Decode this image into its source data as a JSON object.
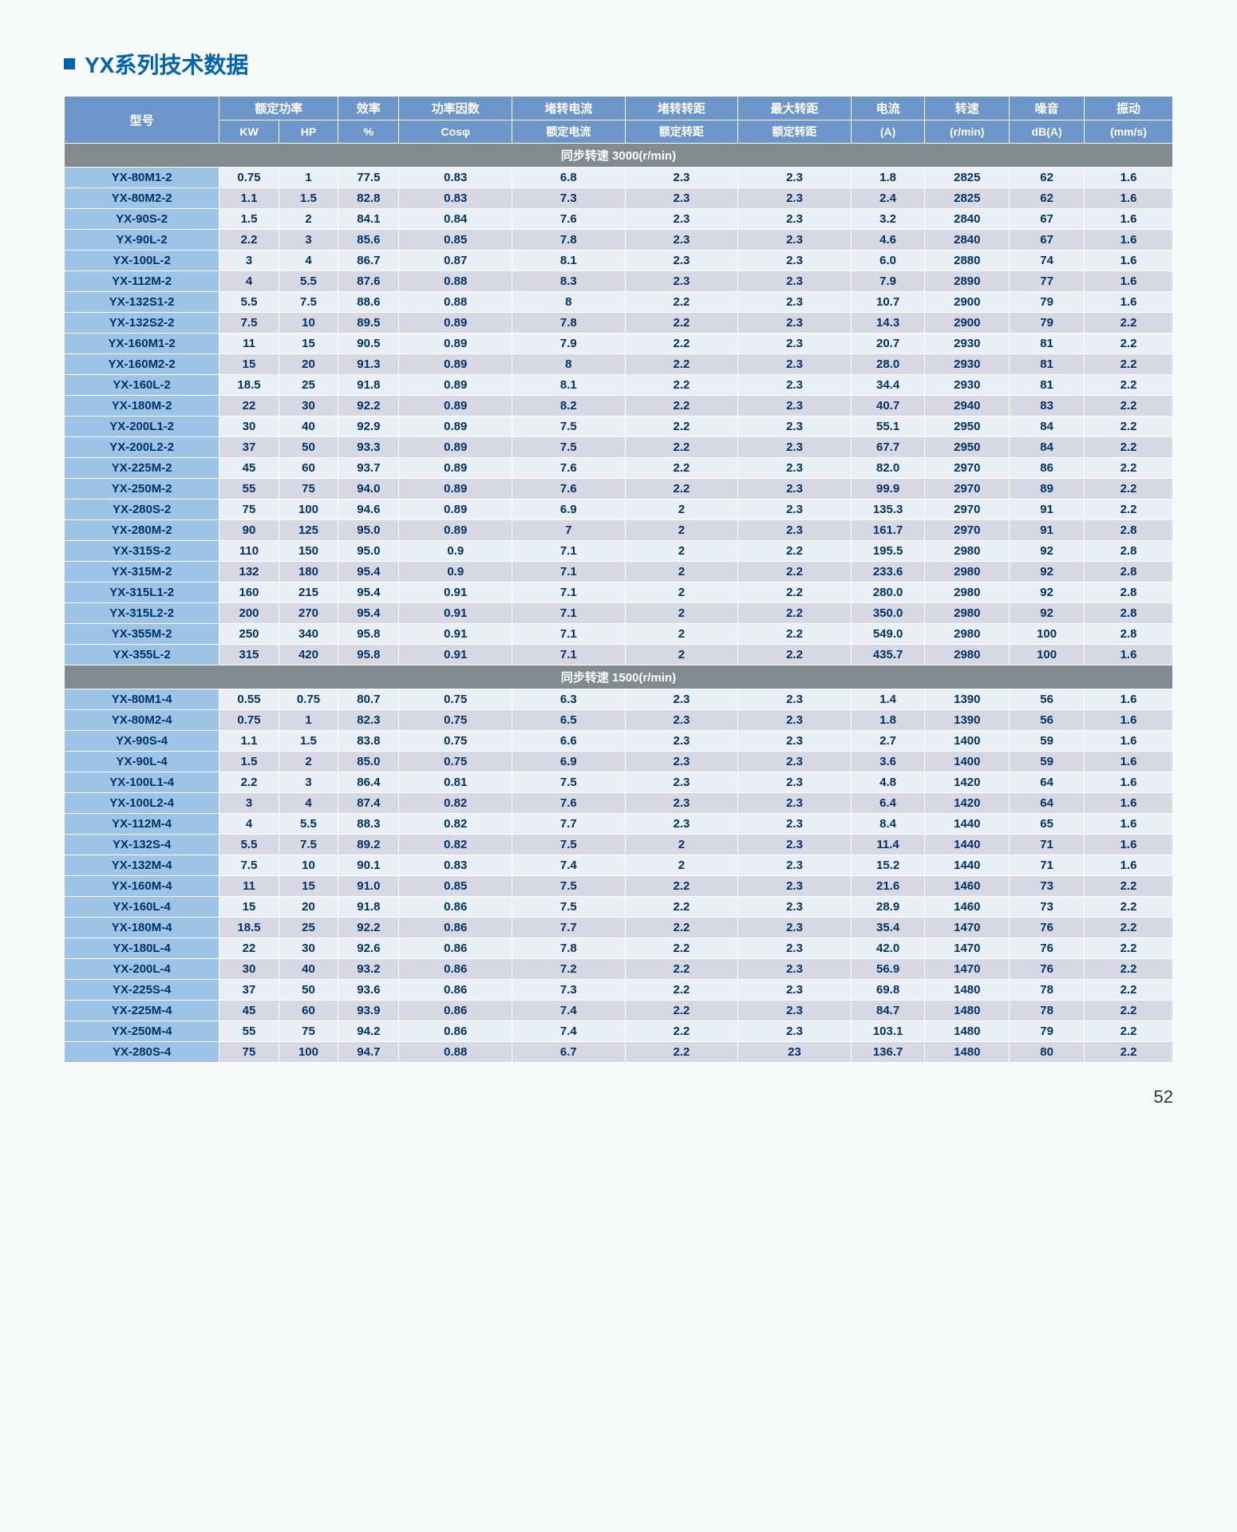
{
  "title": "YX系列技术数据",
  "page_number": "52",
  "colors": {
    "header_bg": "#6c95c9",
    "section_bg": "#808a8f",
    "model_bg": "#9dc3e6",
    "row_light": "#eaeff5",
    "row_dark": "#d8d8e5",
    "text": "#003366",
    "title": "#0063b0"
  },
  "header": {
    "model": "型号",
    "rated_power": "额定功率",
    "kw": "KW",
    "hp": "HP",
    "efficiency": "效率",
    "efficiency_unit": "%",
    "power_factor": "功率因数",
    "cos": "Cosφ",
    "locked_current": "堵转电流",
    "rated_current_ratio": "额定电流",
    "locked_torque": "堵转转距",
    "rated_torque_ratio1": "额定转距",
    "max_torque": "最大转距",
    "rated_torque_ratio2": "额定转距",
    "current": "电流",
    "current_unit": "(A)",
    "speed": "转速",
    "speed_unit": "(r/min)",
    "noise": "噪音",
    "noise_unit": "dB(A)",
    "vibration": "振动",
    "vibration_unit": "(mm/s)"
  },
  "sections": [
    {
      "label": "同步转速 3000(r/min)",
      "rows": [
        [
          "YX-80M1-2",
          "0.75",
          "1",
          "77.5",
          "0.83",
          "6.8",
          "2.3",
          "2.3",
          "1.8",
          "2825",
          "62",
          "1.6"
        ],
        [
          "YX-80M2-2",
          "1.1",
          "1.5",
          "82.8",
          "0.83",
          "7.3",
          "2.3",
          "2.3",
          "2.4",
          "2825",
          "62",
          "1.6"
        ],
        [
          "YX-90S-2",
          "1.5",
          "2",
          "84.1",
          "0.84",
          "7.6",
          "2.3",
          "2.3",
          "3.2",
          "2840",
          "67",
          "1.6"
        ],
        [
          "YX-90L-2",
          "2.2",
          "3",
          "85.6",
          "0.85",
          "7.8",
          "2.3",
          "2.3",
          "4.6",
          "2840",
          "67",
          "1.6"
        ],
        [
          "YX-100L-2",
          "3",
          "4",
          "86.7",
          "0.87",
          "8.1",
          "2.3",
          "2.3",
          "6.0",
          "2880",
          "74",
          "1.6"
        ],
        [
          "YX-112M-2",
          "4",
          "5.5",
          "87.6",
          "0.88",
          "8.3",
          "2.3",
          "2.3",
          "7.9",
          "2890",
          "77",
          "1.6"
        ],
        [
          "YX-132S1-2",
          "5.5",
          "7.5",
          "88.6",
          "0.88",
          "8",
          "2.2",
          "2.3",
          "10.7",
          "2900",
          "79",
          "1.6"
        ],
        [
          "YX-132S2-2",
          "7.5",
          "10",
          "89.5",
          "0.89",
          "7.8",
          "2.2",
          "2.3",
          "14.3",
          "2900",
          "79",
          "2.2"
        ],
        [
          "YX-160M1-2",
          "11",
          "15",
          "90.5",
          "0.89",
          "7.9",
          "2.2",
          "2.3",
          "20.7",
          "2930",
          "81",
          "2.2"
        ],
        [
          "YX-160M2-2",
          "15",
          "20",
          "91.3",
          "0.89",
          "8",
          "2.2",
          "2.3",
          "28.0",
          "2930",
          "81",
          "2.2"
        ],
        [
          "YX-160L-2",
          "18.5",
          "25",
          "91.8",
          "0.89",
          "8.1",
          "2.2",
          "2.3",
          "34.4",
          "2930",
          "81",
          "2.2"
        ],
        [
          "YX-180M-2",
          "22",
          "30",
          "92.2",
          "0.89",
          "8.2",
          "2.2",
          "2.3",
          "40.7",
          "2940",
          "83",
          "2.2"
        ],
        [
          "YX-200L1-2",
          "30",
          "40",
          "92.9",
          "0.89",
          "7.5",
          "2.2",
          "2.3",
          "55.1",
          "2950",
          "84",
          "2.2"
        ],
        [
          "YX-200L2-2",
          "37",
          "50",
          "93.3",
          "0.89",
          "7.5",
          "2.2",
          "2.3",
          "67.7",
          "2950",
          "84",
          "2.2"
        ],
        [
          "YX-225M-2",
          "45",
          "60",
          "93.7",
          "0.89",
          "7.6",
          "2.2",
          "2.3",
          "82.0",
          "2970",
          "86",
          "2.2"
        ],
        [
          "YX-250M-2",
          "55",
          "75",
          "94.0",
          "0.89",
          "7.6",
          "2.2",
          "2.3",
          "99.9",
          "2970",
          "89",
          "2.2"
        ],
        [
          "YX-280S-2",
          "75",
          "100",
          "94.6",
          "0.89",
          "6.9",
          "2",
          "2.3",
          "135.3",
          "2970",
          "91",
          "2.2"
        ],
        [
          "YX-280M-2",
          "90",
          "125",
          "95.0",
          "0.89",
          "7",
          "2",
          "2.3",
          "161.7",
          "2970",
          "91",
          "2.8"
        ],
        [
          "YX-315S-2",
          "110",
          "150",
          "95.0",
          "0.9",
          "7.1",
          "2",
          "2.2",
          "195.5",
          "2980",
          "92",
          "2.8"
        ],
        [
          "YX-315M-2",
          "132",
          "180",
          "95.4",
          "0.9",
          "7.1",
          "2",
          "2.2",
          "233.6",
          "2980",
          "92",
          "2.8"
        ],
        [
          "YX-315L1-2",
          "160",
          "215",
          "95.4",
          "0.91",
          "7.1",
          "2",
          "2.2",
          "280.0",
          "2980",
          "92",
          "2.8"
        ],
        [
          "YX-315L2-2",
          "200",
          "270",
          "95.4",
          "0.91",
          "7.1",
          "2",
          "2.2",
          "350.0",
          "2980",
          "92",
          "2.8"
        ],
        [
          "YX-355M-2",
          "250",
          "340",
          "95.8",
          "0.91",
          "7.1",
          "2",
          "2.2",
          "549.0",
          "2980",
          "100",
          "2.8"
        ],
        [
          "YX-355L-2",
          "315",
          "420",
          "95.8",
          "0.91",
          "7.1",
          "2",
          "2.2",
          "435.7",
          "2980",
          "100",
          "1.6"
        ]
      ]
    },
    {
      "label": "同步转速 1500(r/min)",
      "rows": [
        [
          "YX-80M1-4",
          "0.55",
          "0.75",
          "80.7",
          "0.75",
          "6.3",
          "2.3",
          "2.3",
          "1.4",
          "1390",
          "56",
          "1.6"
        ],
        [
          "YX-80M2-4",
          "0.75",
          "1",
          "82.3",
          "0.75",
          "6.5",
          "2.3",
          "2.3",
          "1.8",
          "1390",
          "56",
          "1.6"
        ],
        [
          "YX-90S-4",
          "1.1",
          "1.5",
          "83.8",
          "0.75",
          "6.6",
          "2.3",
          "2.3",
          "2.7",
          "1400",
          "59",
          "1.6"
        ],
        [
          "YX-90L-4",
          "1.5",
          "2",
          "85.0",
          "0.75",
          "6.9",
          "2.3",
          "2.3",
          "3.6",
          "1400",
          "59",
          "1.6"
        ],
        [
          "YX-100L1-4",
          "2.2",
          "3",
          "86.4",
          "0.81",
          "7.5",
          "2.3",
          "2.3",
          "4.8",
          "1420",
          "64",
          "1.6"
        ],
        [
          "YX-100L2-4",
          "3",
          "4",
          "87.4",
          "0.82",
          "7.6",
          "2.3",
          "2.3",
          "6.4",
          "1420",
          "64",
          "1.6"
        ],
        [
          "YX-112M-4",
          "4",
          "5.5",
          "88.3",
          "0.82",
          "7.7",
          "2.3",
          "2.3",
          "8.4",
          "1440",
          "65",
          "1.6"
        ],
        [
          "YX-132S-4",
          "5.5",
          "7.5",
          "89.2",
          "0.82",
          "7.5",
          "2",
          "2.3",
          "11.4",
          "1440",
          "71",
          "1.6"
        ],
        [
          "YX-132M-4",
          "7.5",
          "10",
          "90.1",
          "0.83",
          "7.4",
          "2",
          "2.3",
          "15.2",
          "1440",
          "71",
          "1.6"
        ],
        [
          "YX-160M-4",
          "11",
          "15",
          "91.0",
          "0.85",
          "7.5",
          "2.2",
          "2.3",
          "21.6",
          "1460",
          "73",
          "2.2"
        ],
        [
          "YX-160L-4",
          "15",
          "20",
          "91.8",
          "0.86",
          "7.5",
          "2.2",
          "2.3",
          "28.9",
          "1460",
          "73",
          "2.2"
        ],
        [
          "YX-180M-4",
          "18.5",
          "25",
          "92.2",
          "0.86",
          "7.7",
          "2.2",
          "2.3",
          "35.4",
          "1470",
          "76",
          "2.2"
        ],
        [
          "YX-180L-4",
          "22",
          "30",
          "92.6",
          "0.86",
          "7.8",
          "2.2",
          "2.3",
          "42.0",
          "1470",
          "76",
          "2.2"
        ],
        [
          "YX-200L-4",
          "30",
          "40",
          "93.2",
          "0.86",
          "7.2",
          "2.2",
          "2.3",
          "56.9",
          "1470",
          "76",
          "2.2"
        ],
        [
          "YX-225S-4",
          "37",
          "50",
          "93.6",
          "0.86",
          "7.3",
          "2.2",
          "2.3",
          "69.8",
          "1480",
          "78",
          "2.2"
        ],
        [
          "YX-225M-4",
          "45",
          "60",
          "93.9",
          "0.86",
          "7.4",
          "2.2",
          "2.3",
          "84.7",
          "1480",
          "78",
          "2.2"
        ],
        [
          "YX-250M-4",
          "55",
          "75",
          "94.2",
          "0.86",
          "7.4",
          "2.2",
          "2.3",
          "103.1",
          "1480",
          "79",
          "2.2"
        ],
        [
          "YX-280S-4",
          "75",
          "100",
          "94.7",
          "0.88",
          "6.7",
          "2.2",
          "23",
          "136.7",
          "1480",
          "80",
          "2.2"
        ]
      ]
    }
  ]
}
